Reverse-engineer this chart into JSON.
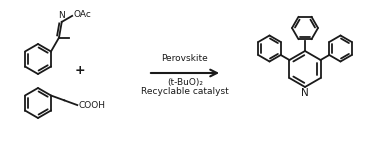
{
  "background_color": "#ffffff",
  "line_color": "#1a1a1a",
  "fig_width": 3.78,
  "fig_height": 1.41,
  "dpi": 100,
  "arrow_text_top": "Perovskite",
  "arrow_text_mid": "(t-BuO)₂",
  "arrow_text_bot": "Recyclable catalyst",
  "lw": 1.3,
  "font_size": 6.5
}
